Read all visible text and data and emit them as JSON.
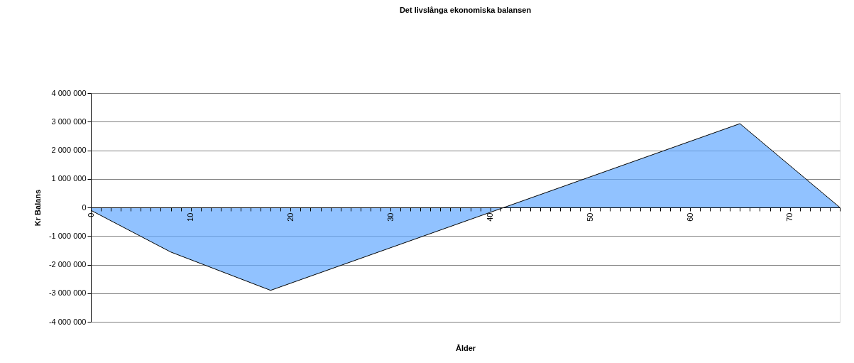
{
  "chart_data": {
    "type": "area",
    "title": "Det livslånga ekonomiska balansen",
    "xlabel": "Ålder",
    "ylabel": "Kr Balans",
    "x": [
      0,
      8,
      18,
      65,
      75
    ],
    "series": [
      {
        "color": "#62a8ff",
        "values": [
          -100000,
          -1560000,
          -2900000,
          2930000,
          0
        ]
      }
    ],
    "xlim": [
      0,
      75
    ],
    "xticks": [
      {
        "value": 0,
        "label": "0"
      },
      {
        "value": 1,
        "label": null
      },
      {
        "value": 2,
        "label": null
      },
      {
        "value": 3,
        "label": null
      },
      {
        "value": 4,
        "label": null
      },
      {
        "value": 5,
        "label": null
      },
      {
        "value": 6,
        "label": null
      },
      {
        "value": 7,
        "label": null
      },
      {
        "value": 8,
        "label": null
      },
      {
        "value": 9,
        "label": null
      },
      {
        "value": 10,
        "label": "10"
      },
      {
        "value": 11,
        "label": null
      },
      {
        "value": 12,
        "label": null
      },
      {
        "value": 13,
        "label": null
      },
      {
        "value": 14,
        "label": null
      },
      {
        "value": 15,
        "label": null
      },
      {
        "value": 16,
        "label": null
      },
      {
        "value": 17,
        "label": null
      },
      {
        "value": 18,
        "label": null
      },
      {
        "value": 19,
        "label": null
      },
      {
        "value": 20,
        "label": "20"
      },
      {
        "value": 21,
        "label": null
      },
      {
        "value": 22,
        "label": null
      },
      {
        "value": 23,
        "label": null
      },
      {
        "value": 24,
        "label": null
      },
      {
        "value": 25,
        "label": null
      },
      {
        "value": 26,
        "label": null
      },
      {
        "value": 27,
        "label": null
      },
      {
        "value": 28,
        "label": null
      },
      {
        "value": 29,
        "label": null
      },
      {
        "value": 30,
        "label": "30"
      },
      {
        "value": 31,
        "label": null
      },
      {
        "value": 32,
        "label": null
      },
      {
        "value": 33,
        "label": null
      },
      {
        "value": 34,
        "label": null
      },
      {
        "value": 35,
        "label": null
      },
      {
        "value": 36,
        "label": null
      },
      {
        "value": 37,
        "label": null
      },
      {
        "value": 38,
        "label": null
      },
      {
        "value": 39,
        "label": null
      },
      {
        "value": 40,
        "label": "40"
      },
      {
        "value": 41,
        "label": null
      },
      {
        "value": 42,
        "label": null
      },
      {
        "value": 43,
        "label": null
      },
      {
        "value": 44,
        "label": null
      },
      {
        "value": 45,
        "label": null
      },
      {
        "value": 46,
        "label": null
      },
      {
        "value": 47,
        "label": null
      },
      {
        "value": 48,
        "label": null
      },
      {
        "value": 49,
        "label": null
      },
      {
        "value": 50,
        "label": "50"
      },
      {
        "value": 51,
        "label": null
      },
      {
        "value": 52,
        "label": null
      },
      {
        "value": 53,
        "label": null
      },
      {
        "value": 54,
        "label": null
      },
      {
        "value": 55,
        "label": null
      },
      {
        "value": 56,
        "label": null
      },
      {
        "value": 57,
        "label": null
      },
      {
        "value": 58,
        "label": null
      },
      {
        "value": 59,
        "label": null
      },
      {
        "value": 60,
        "label": "60"
      },
      {
        "value": 61,
        "label": null
      },
      {
        "value": 62,
        "label": null
      },
      {
        "value": 63,
        "label": null
      },
      {
        "value": 64,
        "label": null
      },
      {
        "value": 65,
        "label": null
      },
      {
        "value": 66,
        "label": null
      },
      {
        "value": 67,
        "label": null
      },
      {
        "value": 68,
        "label": null
      },
      {
        "value": 69,
        "label": null
      },
      {
        "value": 70,
        "label": "70"
      },
      {
        "value": 71,
        "label": null
      },
      {
        "value": 72,
        "label": null
      },
      {
        "value": 73,
        "label": null
      },
      {
        "value": 74,
        "label": null
      },
      {
        "value": 75,
        "label": null
      }
    ],
    "ylim": [
      -4000000,
      4000000
    ],
    "yticks": [
      {
        "value": -4000000,
        "label": "-4 000 000"
      },
      {
        "value": -3000000,
        "label": "-3 000 000"
      },
      {
        "value": -2000000,
        "label": "-2 000 000"
      },
      {
        "value": -1000000,
        "label": "-1 000 000"
      },
      {
        "value": 0,
        "label": "0"
      },
      {
        "value": 1000000,
        "label": "1 000 000"
      },
      {
        "value": 2000000,
        "label": "2 000 000"
      },
      {
        "value": 3000000,
        "label": "3 000 000"
      },
      {
        "value": 4000000,
        "label": "4 000 000"
      }
    ],
    "grid": "y"
  }
}
